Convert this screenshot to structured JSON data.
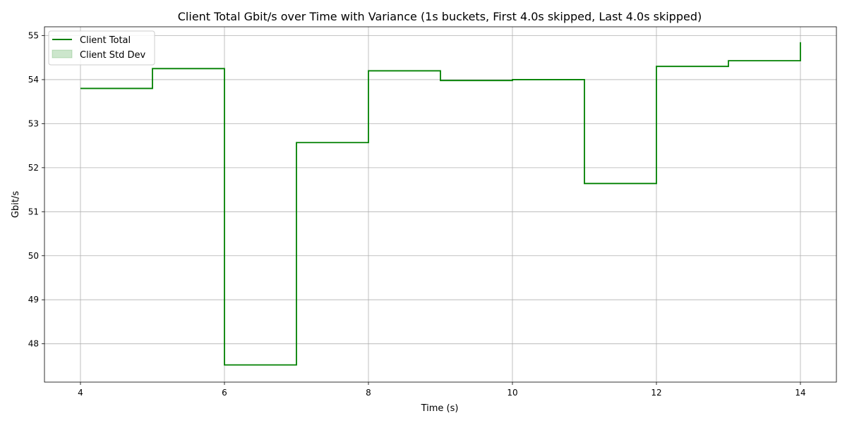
{
  "chart_data": {
    "type": "line",
    "step": "post",
    "title": "Client Total Gbit/s over Time with Variance (1s buckets, First 4.0s skipped, Last 4.0s skipped)",
    "xlabel": "Time (s)",
    "ylabel": "Gbit/s",
    "xlim": [
      3.5,
      14.5
    ],
    "ylim": [
      47.13,
      55.2
    ],
    "xticks": [
      4,
      6,
      8,
      10,
      12,
      14
    ],
    "yticks": [
      48,
      49,
      50,
      51,
      52,
      53,
      54,
      55
    ],
    "grid": true,
    "legend_position": "top-left",
    "series": [
      {
        "name": "Client Total",
        "color": "#008000",
        "x": [
          4,
          5,
          6,
          7,
          8,
          9,
          10,
          11,
          12,
          13,
          14
        ],
        "values": [
          53.8,
          54.25,
          47.52,
          52.57,
          54.2,
          53.98,
          54.0,
          51.64,
          54.3,
          54.43,
          54.85
        ]
      },
      {
        "name": "Client Std Dev",
        "color": "#008000",
        "fill_opacity": 0.2,
        "x": [],
        "values": []
      }
    ]
  }
}
